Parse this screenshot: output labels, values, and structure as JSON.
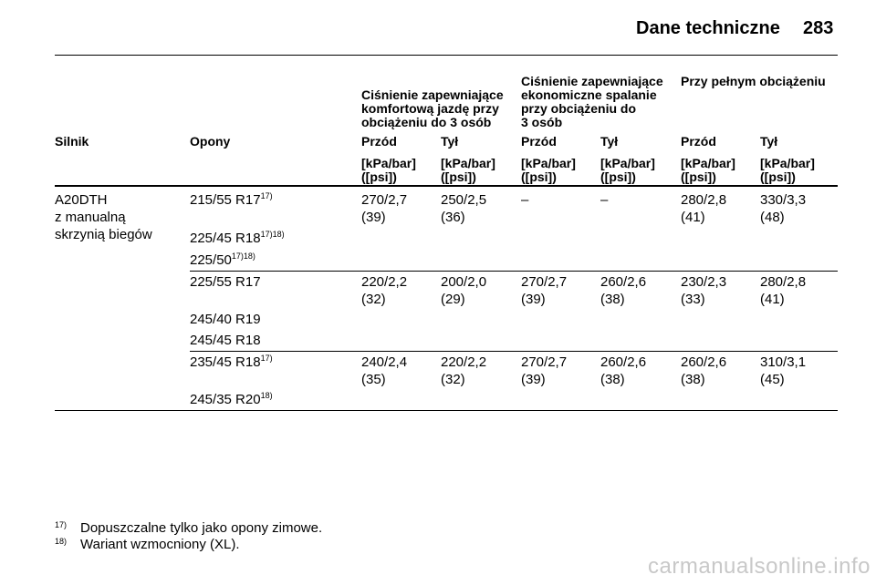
{
  "page": {
    "title": "Dane techniczne",
    "number": "283"
  },
  "groups": [
    {
      "lines": [
        "Ciśnienie zapewniające",
        "komfortową jazdę przy",
        "obciążeniu do 3 osób"
      ]
    },
    {
      "lines": [
        "Ciśnienie zapewniające",
        "ekonomiczne spalanie",
        "przy obciążeniu do",
        "3 osób"
      ]
    },
    {
      "lines": [
        "Przy pełnym obciążeniu"
      ]
    }
  ],
  "columns": [
    "Silnik",
    "Opony",
    "Przód",
    "Tył",
    "Przód",
    "Tył",
    "Przód",
    "Tył"
  ],
  "unit": {
    "line1": "[kPa/bar]",
    "line2": "([psi])"
  },
  "engine": [
    "A20DTH",
    "z manualną",
    "skrzynią biegów"
  ],
  "rows": [
    {
      "tyres": [
        {
          "name": "215/55 R17",
          "sup": "17)"
        },
        {
          "name": "225/45 R18",
          "sup": "17)18)"
        },
        {
          "name": "225/50",
          "sup": "17)18)"
        }
      ],
      "values": [
        {
          "a": "270/2,7",
          "b": "(39)"
        },
        {
          "a": "250/2,5",
          "b": "(36)"
        },
        {
          "a": "–",
          "b": ""
        },
        {
          "a": "–",
          "b": ""
        },
        {
          "a": "280/2,8",
          "b": "(41)"
        },
        {
          "a": "330/3,3",
          "b": "(48)"
        }
      ]
    },
    {
      "tyres": [
        {
          "name": "225/55 R17",
          "sup": ""
        },
        {
          "name": "245/40 R19",
          "sup": ""
        },
        {
          "name": "245/45 R18",
          "sup": ""
        }
      ],
      "values": [
        {
          "a": "220/2,2",
          "b": "(32)"
        },
        {
          "a": "200/2,0",
          "b": "(29)"
        },
        {
          "a": "270/2,7",
          "b": "(39)"
        },
        {
          "a": "260/2,6",
          "b": "(38)"
        },
        {
          "a": "230/2,3",
          "b": "(33)"
        },
        {
          "a": "280/2,8",
          "b": "(41)"
        }
      ]
    },
    {
      "tyres": [
        {
          "name": "235/45 R18",
          "sup": "17)"
        },
        {
          "name": "245/35 R20",
          "sup": "18)"
        }
      ],
      "values": [
        {
          "a": "240/2,4",
          "b": "(35)"
        },
        {
          "a": "220/2,2",
          "b": "(32)"
        },
        {
          "a": "270/2,7",
          "b": "(39)"
        },
        {
          "a": "260/2,6",
          "b": "(38)"
        },
        {
          "a": "260/2,6",
          "b": "(38)"
        },
        {
          "a": "310/3,1",
          "b": "(45)"
        }
      ]
    }
  ],
  "footnotes": [
    {
      "num": "17)",
      "text": "Dopuszczalne tylko jako opony zimowe."
    },
    {
      "num": "18)",
      "text": "Wariant wzmocniony (XL)."
    }
  ],
  "watermark": "carmanualsonline.info"
}
